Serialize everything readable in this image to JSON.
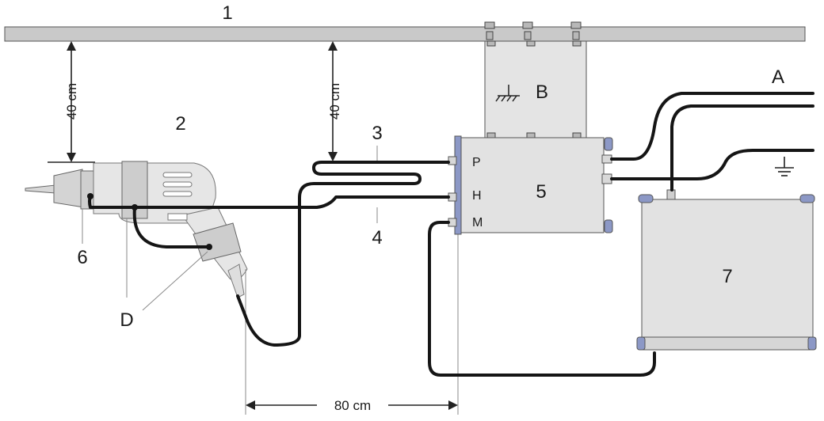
{
  "labels": {
    "ground_plane": "1",
    "drill": "2",
    "cable_upper": "3",
    "cable_lower": "4",
    "network": "5",
    "motor_chuck": "6",
    "receiver": "7",
    "bond": "B",
    "supply": "A",
    "clamp": "D"
  },
  "pins": {
    "p": "P",
    "h": "H",
    "m": "M"
  },
  "dimensions": {
    "height_left": "40 cm",
    "height_middle": "40 cm",
    "horizontal": "80 cm"
  },
  "colors": {
    "plane": "#c9c9c9",
    "box_fill": "#e2e2e2",
    "accent": "#8c98c6",
    "cable": "#151515"
  }
}
